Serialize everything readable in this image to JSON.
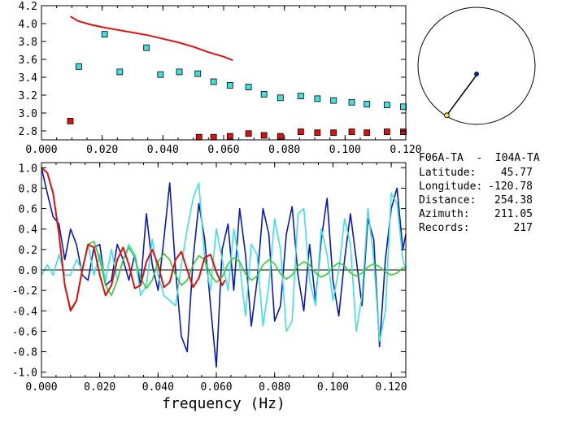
{
  "info": {
    "station_pair": "F06A-TA  -  I04A-TA",
    "rows": [
      {
        "label": "Latitude:",
        "value": "45.77"
      },
      {
        "label": "Longitude:",
        "value": "-120.78"
      },
      {
        "label": "Distance:",
        "value": "254.38"
      },
      {
        "label": "Azimuth:",
        "value": "211.05"
      },
      {
        "label": "Records:",
        "value": "217"
      }
    ]
  },
  "colors": {
    "red": "#dd1010",
    "cyan": "#40e0e0",
    "blue": "#0a1ab0",
    "green": "#33cc33",
    "navy": "#102080",
    "yellow": "#f0e040"
  },
  "compass": {
    "azimuth_deg": 211.05,
    "center_marker": "navy-dot",
    "end_marker": "yellow-dot"
  },
  "chart_data": [
    {
      "type": "scatter",
      "panel": "top",
      "xlim": [
        0.0,
        0.12
      ],
      "ylim": [
        2.7,
        4.2
      ],
      "xticks": [
        "0.000",
        "0.020",
        "0.040",
        "0.060",
        "0.080",
        "0.100",
        "0.120"
      ],
      "yticks": [
        "4.2",
        "4.0",
        "3.8",
        "3.6",
        "3.4",
        "3.2",
        "3.0",
        "2.8"
      ],
      "ytick_values": [
        4.2,
        4.0,
        3.8,
        3.6,
        3.4,
        3.2,
        3.0,
        2.8
      ],
      "xtick_values": [
        0.0,
        0.02,
        0.04,
        0.06,
        0.08,
        0.1,
        0.12
      ],
      "series": [
        {
          "kind": "line",
          "color": "red",
          "x": [
            0.0095,
            0.012,
            0.016,
            0.02,
            0.025,
            0.03,
            0.035,
            0.04,
            0.045,
            0.05,
            0.055,
            0.06,
            0.063
          ],
          "y": [
            4.08,
            4.03,
            3.99,
            3.96,
            3.93,
            3.9,
            3.87,
            3.83,
            3.79,
            3.74,
            3.68,
            3.63,
            3.59
          ]
        },
        {
          "kind": "squares",
          "color": "cyan",
          "x": [
            0.0123,
            0.0208,
            0.0258,
            0.0346,
            0.0392,
            0.0454,
            0.0515,
            0.0567,
            0.0621,
            0.0682,
            0.0733,
            0.0787,
            0.0854,
            0.0909,
            0.0962,
            0.1022,
            0.1072,
            0.1138,
            0.1192
          ],
          "y": [
            3.52,
            3.88,
            3.46,
            3.73,
            3.43,
            3.46,
            3.44,
            3.35,
            3.31,
            3.29,
            3.21,
            3.17,
            3.19,
            3.16,
            3.14,
            3.12,
            3.1,
            3.09,
            3.07
          ]
        },
        {
          "kind": "squares",
          "color": "red",
          "x": [
            0.0095,
            0.0519,
            0.0567,
            0.0621,
            0.0682,
            0.0733,
            0.0787,
            0.0854,
            0.0909,
            0.0962,
            0.1022,
            0.1072,
            0.1138,
            0.1192
          ],
          "y": [
            2.91,
            2.73,
            2.73,
            2.74,
            2.77,
            2.75,
            2.74,
            2.79,
            2.78,
            2.78,
            2.79,
            2.78,
            2.79,
            2.79
          ]
        }
      ]
    },
    {
      "type": "line",
      "panel": "bottom",
      "xlabel": "frequency (Hz)",
      "xlim": [
        0.0,
        0.125
      ],
      "ylim": [
        -1.05,
        1.05
      ],
      "xticks": [
        "0.000",
        "0.020",
        "0.040",
        "0.060",
        "0.080",
        "0.100",
        "0.120"
      ],
      "xtick_values": [
        0.0,
        0.02,
        0.04,
        0.06,
        0.08,
        0.1,
        0.12
      ],
      "yticks": [
        "1.0",
        "0.8",
        "0.6",
        "0.4",
        "0.2",
        "0.0",
        "-0.2",
        "-0.4",
        "-0.6",
        "-0.8",
        "-1.0"
      ],
      "ytick_values": [
        1.0,
        0.8,
        0.6,
        0.4,
        0.2,
        0.0,
        -0.2,
        -0.4,
        -0.6,
        -0.8,
        -1.0
      ],
      "series": [
        {
          "color": "blue",
          "x": [
            0.0,
            0.002,
            0.004,
            0.006,
            0.008,
            0.01,
            0.012,
            0.014,
            0.016,
            0.018,
            0.02,
            0.022,
            0.024,
            0.026,
            0.028,
            0.03,
            0.032,
            0.034,
            0.036,
            0.038,
            0.04,
            0.042,
            0.044,
            0.046,
            0.048,
            0.05,
            0.052,
            0.054,
            0.056,
            0.058,
            0.06,
            0.062,
            0.064,
            0.066,
            0.068,
            0.07,
            0.072,
            0.074,
            0.076,
            0.078,
            0.08,
            0.082,
            0.084,
            0.086,
            0.088,
            0.09,
            0.092,
            0.094,
            0.096,
            0.098,
            0.1,
            0.102,
            0.104,
            0.106,
            0.108,
            0.11,
            0.112,
            0.114,
            0.116,
            0.118,
            0.12,
            0.122,
            0.124,
            0.125
          ],
          "y": [
            1.0,
            0.75,
            0.52,
            0.45,
            0.1,
            0.4,
            0.25,
            -0.05,
            -0.1,
            0.22,
            0.25,
            -0.15,
            -0.1,
            0.25,
            0.1,
            -0.1,
            0.15,
            -0.15,
            0.55,
            0.05,
            -0.2,
            0.3,
            0.85,
            0.0,
            -0.65,
            -0.8,
            0.1,
            0.65,
            0.3,
            -0.35,
            -0.95,
            0.2,
            0.45,
            -0.2,
            0.6,
            0.15,
            -0.55,
            -0.1,
            0.6,
            0.35,
            -0.5,
            -0.35,
            0.35,
            0.62,
            -0.05,
            -0.4,
            0.25,
            -0.3,
            0.3,
            0.7,
            -0.1,
            -0.45,
            0.1,
            0.55,
            0.1,
            -0.35,
            0.5,
            0.3,
            -0.75,
            0.1,
            0.6,
            0.8,
            0.2,
            0.35
          ]
        },
        {
          "color": "cyan",
          "x": [
            0.0,
            0.002,
            0.004,
            0.006,
            0.008,
            0.01,
            0.012,
            0.014,
            0.016,
            0.018,
            0.02,
            0.022,
            0.024,
            0.026,
            0.028,
            0.03,
            0.032,
            0.034,
            0.036,
            0.038,
            0.04,
            0.042,
            0.044,
            0.046,
            0.048,
            0.05,
            0.052,
            0.054,
            0.056,
            0.058,
            0.06,
            0.062,
            0.064,
            0.066,
            0.068,
            0.07,
            0.072,
            0.074,
            0.076,
            0.078,
            0.08,
            0.082,
            0.084,
            0.086,
            0.088,
            0.09,
            0.092,
            0.094,
            0.096,
            0.098,
            0.1,
            0.102,
            0.104,
            0.106,
            0.108,
            0.11,
            0.112,
            0.114,
            0.116,
            0.118,
            0.12,
            0.122,
            0.124,
            0.125
          ],
          "y": [
            -0.05,
            0.05,
            -0.05,
            0.15,
            -0.05,
            -0.05,
            0.1,
            0.0,
            0.25,
            -0.05,
            0.15,
            -0.1,
            0.2,
            -0.1,
            0.1,
            0.25,
            0.15,
            -0.25,
            -0.15,
            0.3,
            -0.05,
            -0.25,
            -0.3,
            -0.35,
            0.05,
            0.4,
            0.7,
            0.85,
            0.1,
            -0.2,
            0.4,
            0.1,
            -0.2,
            0.4,
            0.05,
            -0.45,
            0.25,
            0.15,
            -0.55,
            -0.15,
            0.5,
            0.2,
            -0.6,
            -0.5,
            0.55,
            0.6,
            -0.1,
            -0.35,
            0.4,
            0.15,
            -0.3,
            0.0,
            0.5,
            0.25,
            -0.6,
            -0.25,
            0.6,
            0.1,
            -0.7,
            -0.4,
            0.75,
            0.65,
            0.1,
            0.0
          ]
        },
        {
          "color": "green",
          "x": [
            0.0,
            0.002,
            0.004,
            0.006,
            0.008,
            0.01,
            0.012,
            0.014,
            0.016,
            0.018,
            0.02,
            0.022,
            0.024,
            0.026,
            0.028,
            0.03,
            0.032,
            0.034,
            0.036,
            0.038,
            0.04,
            0.042,
            0.044,
            0.046,
            0.048,
            0.05,
            0.052,
            0.054,
            0.056,
            0.058,
            0.06,
            0.062,
            0.064,
            0.066,
            0.068,
            0.07,
            0.072,
            0.074,
            0.076,
            0.078,
            0.08,
            0.082,
            0.084,
            0.086,
            0.088,
            0.09,
            0.092,
            0.094,
            0.096,
            0.098,
            0.1,
            0.102,
            0.104,
            0.106,
            0.108,
            0.11,
            0.112,
            0.114,
            0.116,
            0.118,
            0.12,
            0.122,
            0.124,
            0.125
          ],
          "y": [
            1.0,
            0.95,
            0.75,
            0.35,
            -0.15,
            -0.38,
            -0.3,
            0.0,
            0.25,
            0.28,
            0.1,
            -0.15,
            -0.25,
            -0.1,
            0.1,
            0.22,
            0.12,
            -0.08,
            -0.18,
            -0.1,
            0.08,
            0.16,
            0.1,
            -0.05,
            -0.15,
            -0.1,
            0.05,
            0.14,
            0.1,
            -0.05,
            -0.12,
            -0.07,
            0.06,
            0.12,
            0.08,
            -0.04,
            -0.1,
            -0.06,
            0.05,
            0.1,
            0.06,
            -0.04,
            -0.09,
            -0.05,
            0.04,
            0.08,
            0.05,
            -0.03,
            -0.07,
            -0.04,
            0.03,
            0.07,
            0.04,
            -0.03,
            -0.06,
            -0.03,
            0.03,
            0.06,
            0.03,
            -0.02,
            -0.05,
            -0.03,
            0.02,
            0.02
          ]
        },
        {
          "color": "red",
          "x": [
            0.0,
            0.002,
            0.004,
            0.006,
            0.008,
            0.01,
            0.012,
            0.014,
            0.016,
            0.018,
            0.02,
            0.022,
            0.024,
            0.026,
            0.028,
            0.03,
            0.032,
            0.034,
            0.036,
            0.038,
            0.04,
            0.042,
            0.044,
            0.046,
            0.048,
            0.05,
            0.052,
            0.054,
            0.056,
            0.058,
            0.06,
            0.062,
            0.063
          ],
          "y": [
            1.0,
            0.95,
            0.75,
            0.35,
            -0.15,
            -0.4,
            -0.3,
            0.0,
            0.25,
            0.22,
            -0.05,
            -0.25,
            -0.15,
            0.1,
            0.22,
            0.05,
            -0.18,
            -0.15,
            0.08,
            0.2,
            0.05,
            -0.17,
            -0.12,
            0.1,
            0.18,
            0.0,
            -0.17,
            -0.08,
            0.12,
            0.15,
            -0.02,
            -0.15,
            -0.1
          ]
        }
      ]
    }
  ]
}
